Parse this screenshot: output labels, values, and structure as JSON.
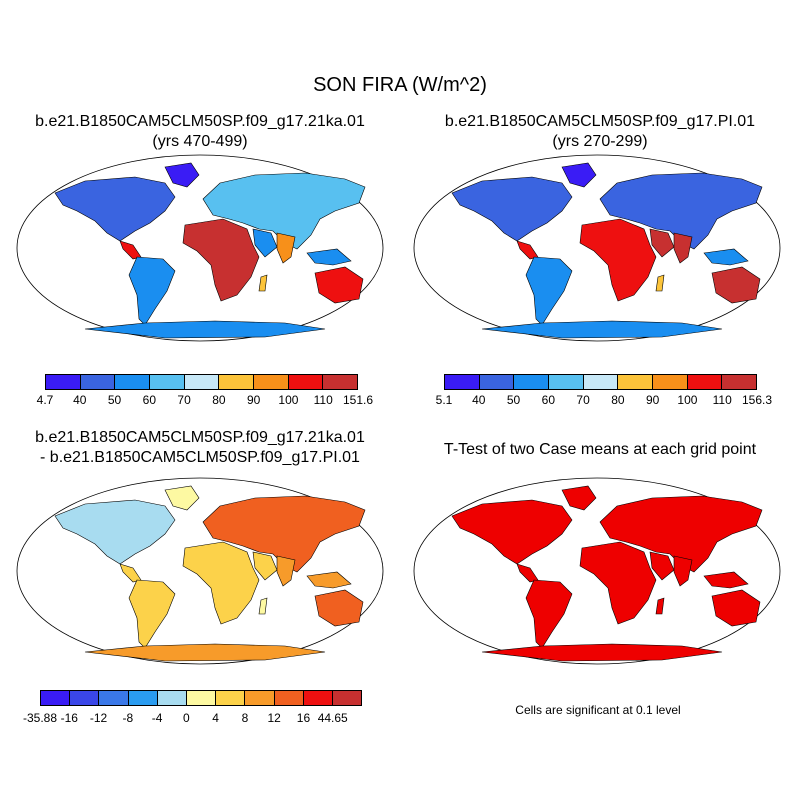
{
  "main_title": "SON FIRA (W/m^2)",
  "panels": {
    "top_left": {
      "title_line1": "b.e21.B1850CAM5CLM50SP.f09_g17.21ka.01",
      "title_line2": "(yrs 470-499)",
      "colorbar_colors": [
        "#3a1cf5",
        "#3a64e0",
        "#1a8ef0",
        "#58c0f0",
        "#c7e8f7",
        "#fcc43a",
        "#f7901a",
        "#ee1010",
        "#c73030"
      ],
      "colorbar_labels": [
        "4.7",
        "40",
        "50",
        "60",
        "70",
        "80",
        "90",
        "100",
        "110",
        "151.6"
      ]
    },
    "top_right": {
      "title_line1": "b.e21.B1850CAM5CLM50SP.f09_g17.PI.01",
      "title_line2": "(yrs 270-299)",
      "colorbar_colors": [
        "#3a1cf5",
        "#3a64e0",
        "#1a8ef0",
        "#58c0f0",
        "#c7e8f7",
        "#fcc43a",
        "#f7901a",
        "#ee1010",
        "#c73030"
      ],
      "colorbar_labels": [
        "5.1",
        "40",
        "50",
        "60",
        "70",
        "80",
        "90",
        "100",
        "110",
        "156.3"
      ]
    },
    "bottom_left": {
      "title_line1": "b.e21.B1850CAM5CLM50SP.f09_g17.21ka.01",
      "title_line2": "- b.e21.B1850CAM5CLM50SP.f09_g17.PI.01",
      "colorbar_colors": [
        "#3a1cf5",
        "#3a46e8",
        "#3a78e8",
        "#2a9cf0",
        "#a8dcf0",
        "#fdf9a2",
        "#fcd24a",
        "#f79b2a",
        "#f06020",
        "#ee1010",
        "#c73030"
      ],
      "colorbar_labels": [
        "-35.88",
        "-16",
        "-12",
        "-8",
        "-4",
        "0",
        "4",
        "8",
        "12",
        "16",
        "44.65"
      ]
    },
    "bottom_right": {
      "title": "T-Test of two Case means at each grid point",
      "note": "Cells are significant at 0.1 level",
      "color": "#ee0000"
    }
  }
}
